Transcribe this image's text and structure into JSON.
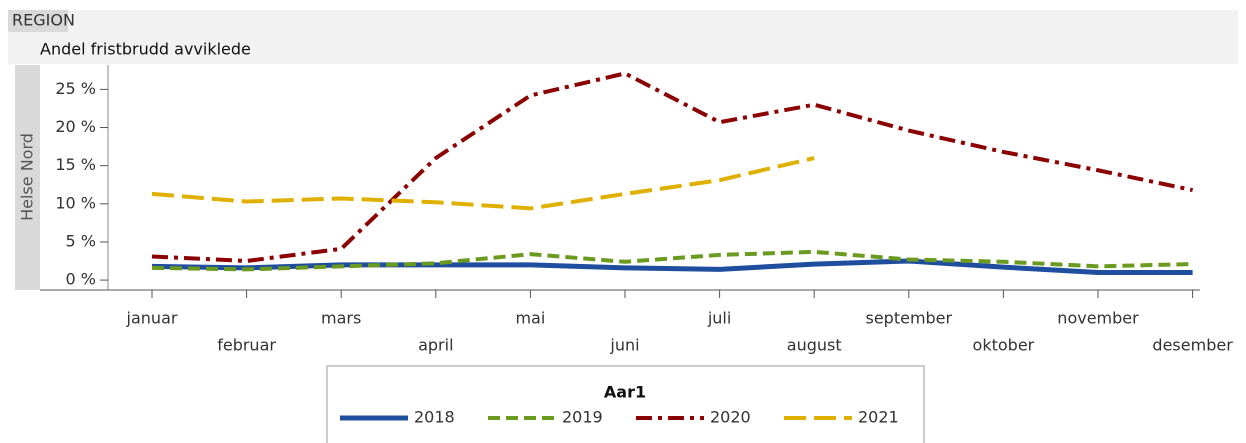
{
  "header": "REGION",
  "chart_data": {
    "type": "line",
    "title": "Andel fristbrudd avviklede",
    "ylabel": "Helse Nord",
    "categories": [
      "januar",
      "februar",
      "mars",
      "april",
      "mai",
      "juni",
      "juli",
      "august",
      "september",
      "oktober",
      "november",
      "desember"
    ],
    "series": [
      {
        "name": "2018",
        "color": "#1f4e9e",
        "values": [
          1.8,
          1.6,
          2.0,
          2.0,
          2.0,
          1.6,
          1.4,
          2.1,
          2.5,
          1.7,
          1.0,
          1.0
        ]
      },
      {
        "name": "2019",
        "color": "#6a9a1f",
        "values": [
          1.6,
          1.4,
          1.8,
          2.2,
          3.4,
          2.4,
          3.3,
          3.7,
          2.7,
          2.4,
          1.8,
          2.1
        ]
      },
      {
        "name": "2020",
        "color": "#8b0000",
        "values": [
          3.1,
          2.5,
          4.1,
          16.0,
          24.2,
          27.1,
          20.7,
          23.0,
          19.6,
          16.8,
          14.4,
          11.8
        ]
      },
      {
        "name": "2021",
        "color": "#e0b000",
        "values": [
          11.3,
          10.3,
          10.7,
          10.2,
          9.4,
          11.3,
          13.1,
          16.0,
          null,
          null,
          null,
          null
        ]
      }
    ],
    "ylim": [
      -1.3,
      28.2
    ],
    "yticks": [
      {
        "value": 0,
        "label": "0 %"
      },
      {
        "value": 5,
        "label": "5 %"
      },
      {
        "value": 10,
        "label": "10 %"
      },
      {
        "value": 15,
        "label": "15 %"
      },
      {
        "value": 20,
        "label": "20 %"
      },
      {
        "value": 25,
        "label": "25 %"
      }
    ],
    "legend_title": "Aar1",
    "legend": "bottom"
  }
}
